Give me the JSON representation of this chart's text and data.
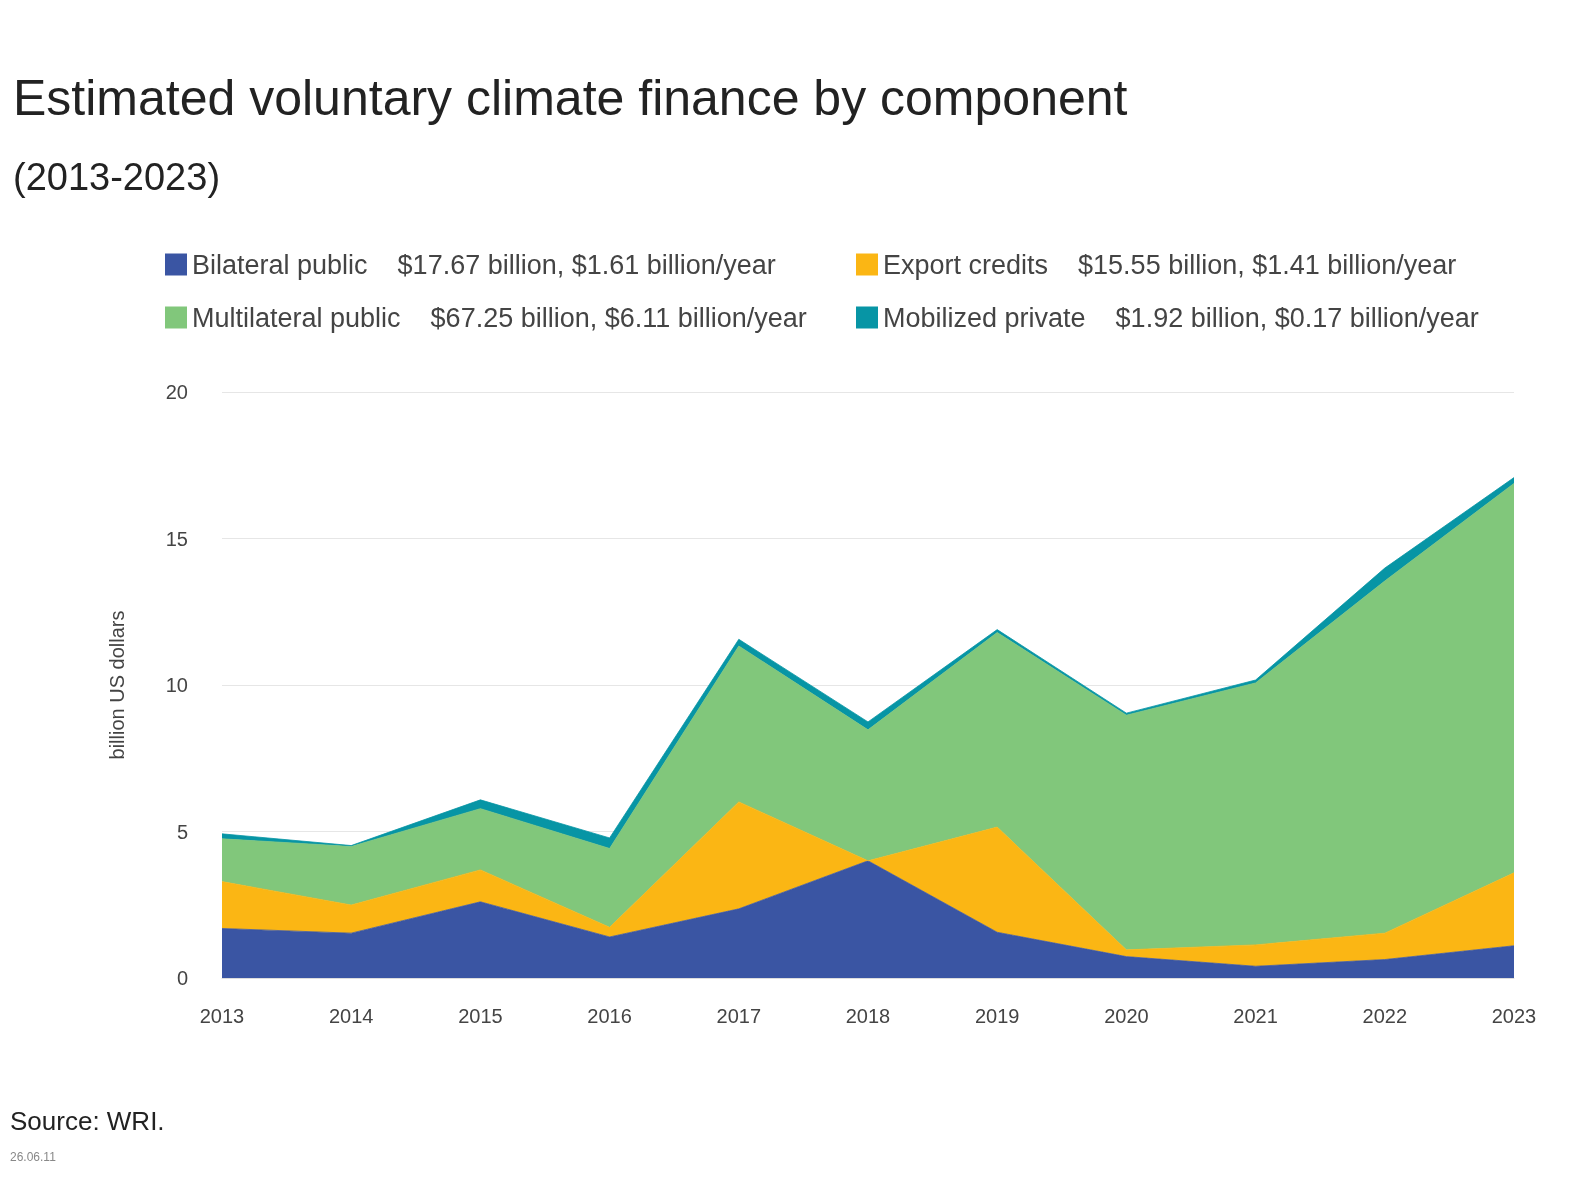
{
  "chart_data": {
    "type": "area",
    "stacked": true,
    "title": "Estimated voluntary climate finance by component",
    "subtitle": "(2013-2023)",
    "ylabel": "billion US dollars",
    "categories": [
      "2013",
      "2014",
      "2015",
      "2016",
      "2017",
      "2018",
      "2019",
      "2020",
      "2021",
      "2022",
      "2023"
    ],
    "series": [
      {
        "name": "Bilateral public    $17.67 billion, $1.61 billion/year",
        "color": "#3a55a3",
        "values": [
          1.69,
          1.53,
          2.6,
          1.4,
          2.36,
          4.0,
          1.56,
          0.73,
          0.4,
          0.63,
          1.1
        ]
      },
      {
        "name": "Export credits    $15.55 billion, $1.41 billion/year",
        "color": "#fbb614",
        "values": [
          1.6,
          0.96,
          1.09,
          0.33,
          3.65,
          0,
          3.59,
          0.23,
          0.73,
          0.9,
          2.49
        ]
      },
      {
        "name": "Multilateral public    $67.25 billion, $6.11 billion/year",
        "color": "#81c77b",
        "values": [
          1.46,
          2.0,
          2.09,
          2.69,
          5.32,
          4.47,
          6.64,
          8.01,
          8.94,
          12.02,
          13.29
        ]
      },
      {
        "name": "Mobilized private    $1.92 billion, $0.17 billion/year",
        "color": "#0795a5",
        "values": [
          0.17,
          0.03,
          0.3,
          0.36,
          0.23,
          0.27,
          0.1,
          0.07,
          0.1,
          0.44,
          0.2
        ]
      }
    ],
    "ylim": [
      0,
      20
    ],
    "yticks": [
      0,
      5,
      10,
      15,
      20
    ],
    "grid": "y",
    "legend": "top left",
    "marker": "none",
    "annotations": [
      "Source: WRI.",
      "26.06.11"
    ]
  }
}
